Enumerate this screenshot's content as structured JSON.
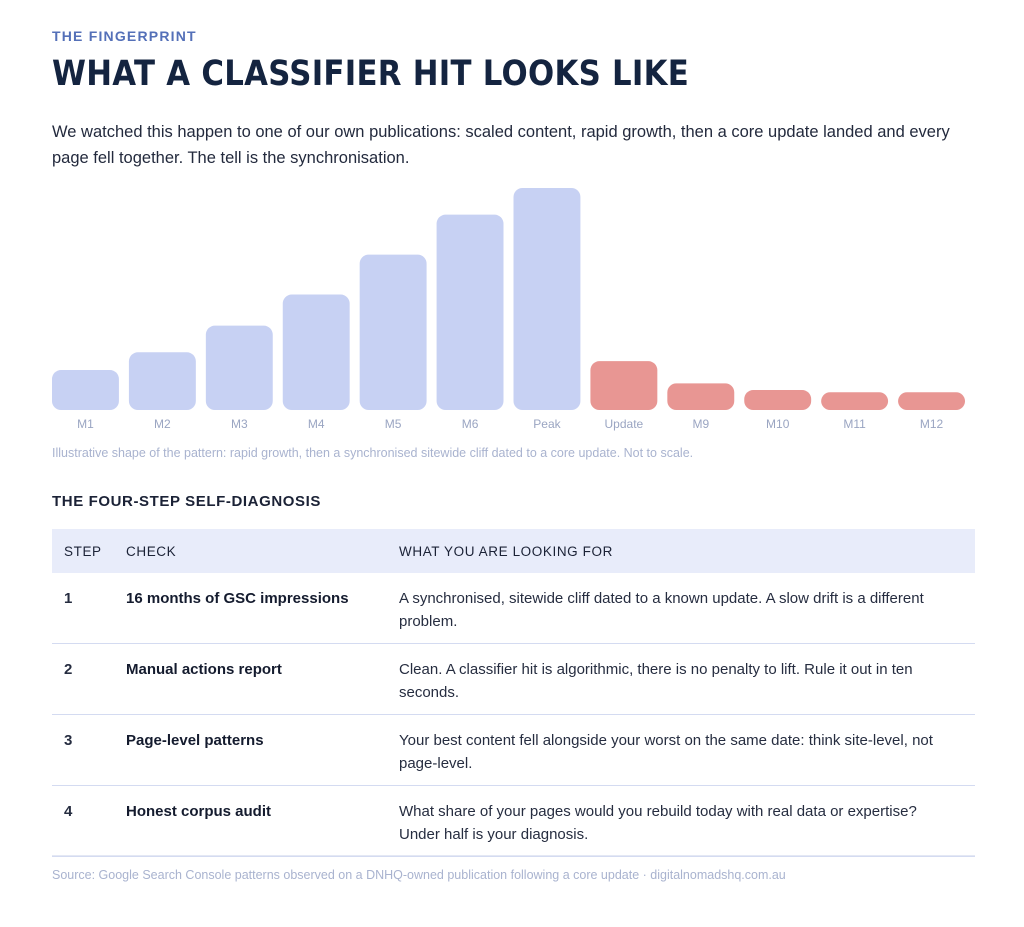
{
  "eyebrow": "THE FINGERPRINT",
  "headline": "WHAT A CLASSIFIER HIT LOOKS LIKE",
  "intro": "We watched this happen to one of our own publications: scaled content, rapid growth, then a core update landed and every page fell together. The tell is the synchronisation.",
  "chart_note": "Illustrative shape of the pattern: rapid growth, then a synchronised sitewide cliff dated to a core update. Not to scale.",
  "chart_data": {
    "type": "bar",
    "title": "",
    "xlabel": "",
    "ylabel": "",
    "categories": [
      "M1",
      "M2",
      "M3",
      "M4",
      "M5",
      "M6",
      "Peak",
      "Update",
      "M9",
      "M10",
      "M11",
      "M12"
    ],
    "values": [
      18,
      26,
      38,
      52,
      70,
      88,
      100,
      22,
      12,
      9,
      8,
      8
    ],
    "ylim": [
      0,
      100
    ],
    "grid": false,
    "colors": {
      "growth": "#c7d1f3",
      "decline": "#e89693",
      "tick_label": "#9aa5c2"
    },
    "phase": [
      "growth",
      "growth",
      "growth",
      "growth",
      "growth",
      "growth",
      "growth",
      "decline",
      "decline",
      "decline",
      "decline",
      "decline"
    ]
  },
  "section_title": "THE FOUR-STEP SELF-DIAGNOSIS",
  "table": {
    "headers": {
      "step": "STEP",
      "check": "CHECK",
      "look": "WHAT YOU ARE LOOKING FOR"
    },
    "rows": [
      {
        "step": "1",
        "check": "16 months of GSC impressions",
        "look": "A synchronised, sitewide cliff dated to a known update. A slow drift is a different problem."
      },
      {
        "step": "2",
        "check": "Manual actions report",
        "look": "Clean. A classifier hit is algorithmic, there is no penalty to lift. Rule it out in ten seconds."
      },
      {
        "step": "3",
        "check": "Page-level patterns",
        "look": "Your best content fell alongside your worst on the same date: think site-level, not page-level."
      },
      {
        "step": "4",
        "check": "Honest corpus audit",
        "look": "What share of your pages would you rebuild today with real data or expertise? Under half is your diagnosis."
      }
    ]
  },
  "source": "Source: Google Search Console patterns observed on a DNHQ-owned publication following a core update · digitalnomadshq.com.au"
}
